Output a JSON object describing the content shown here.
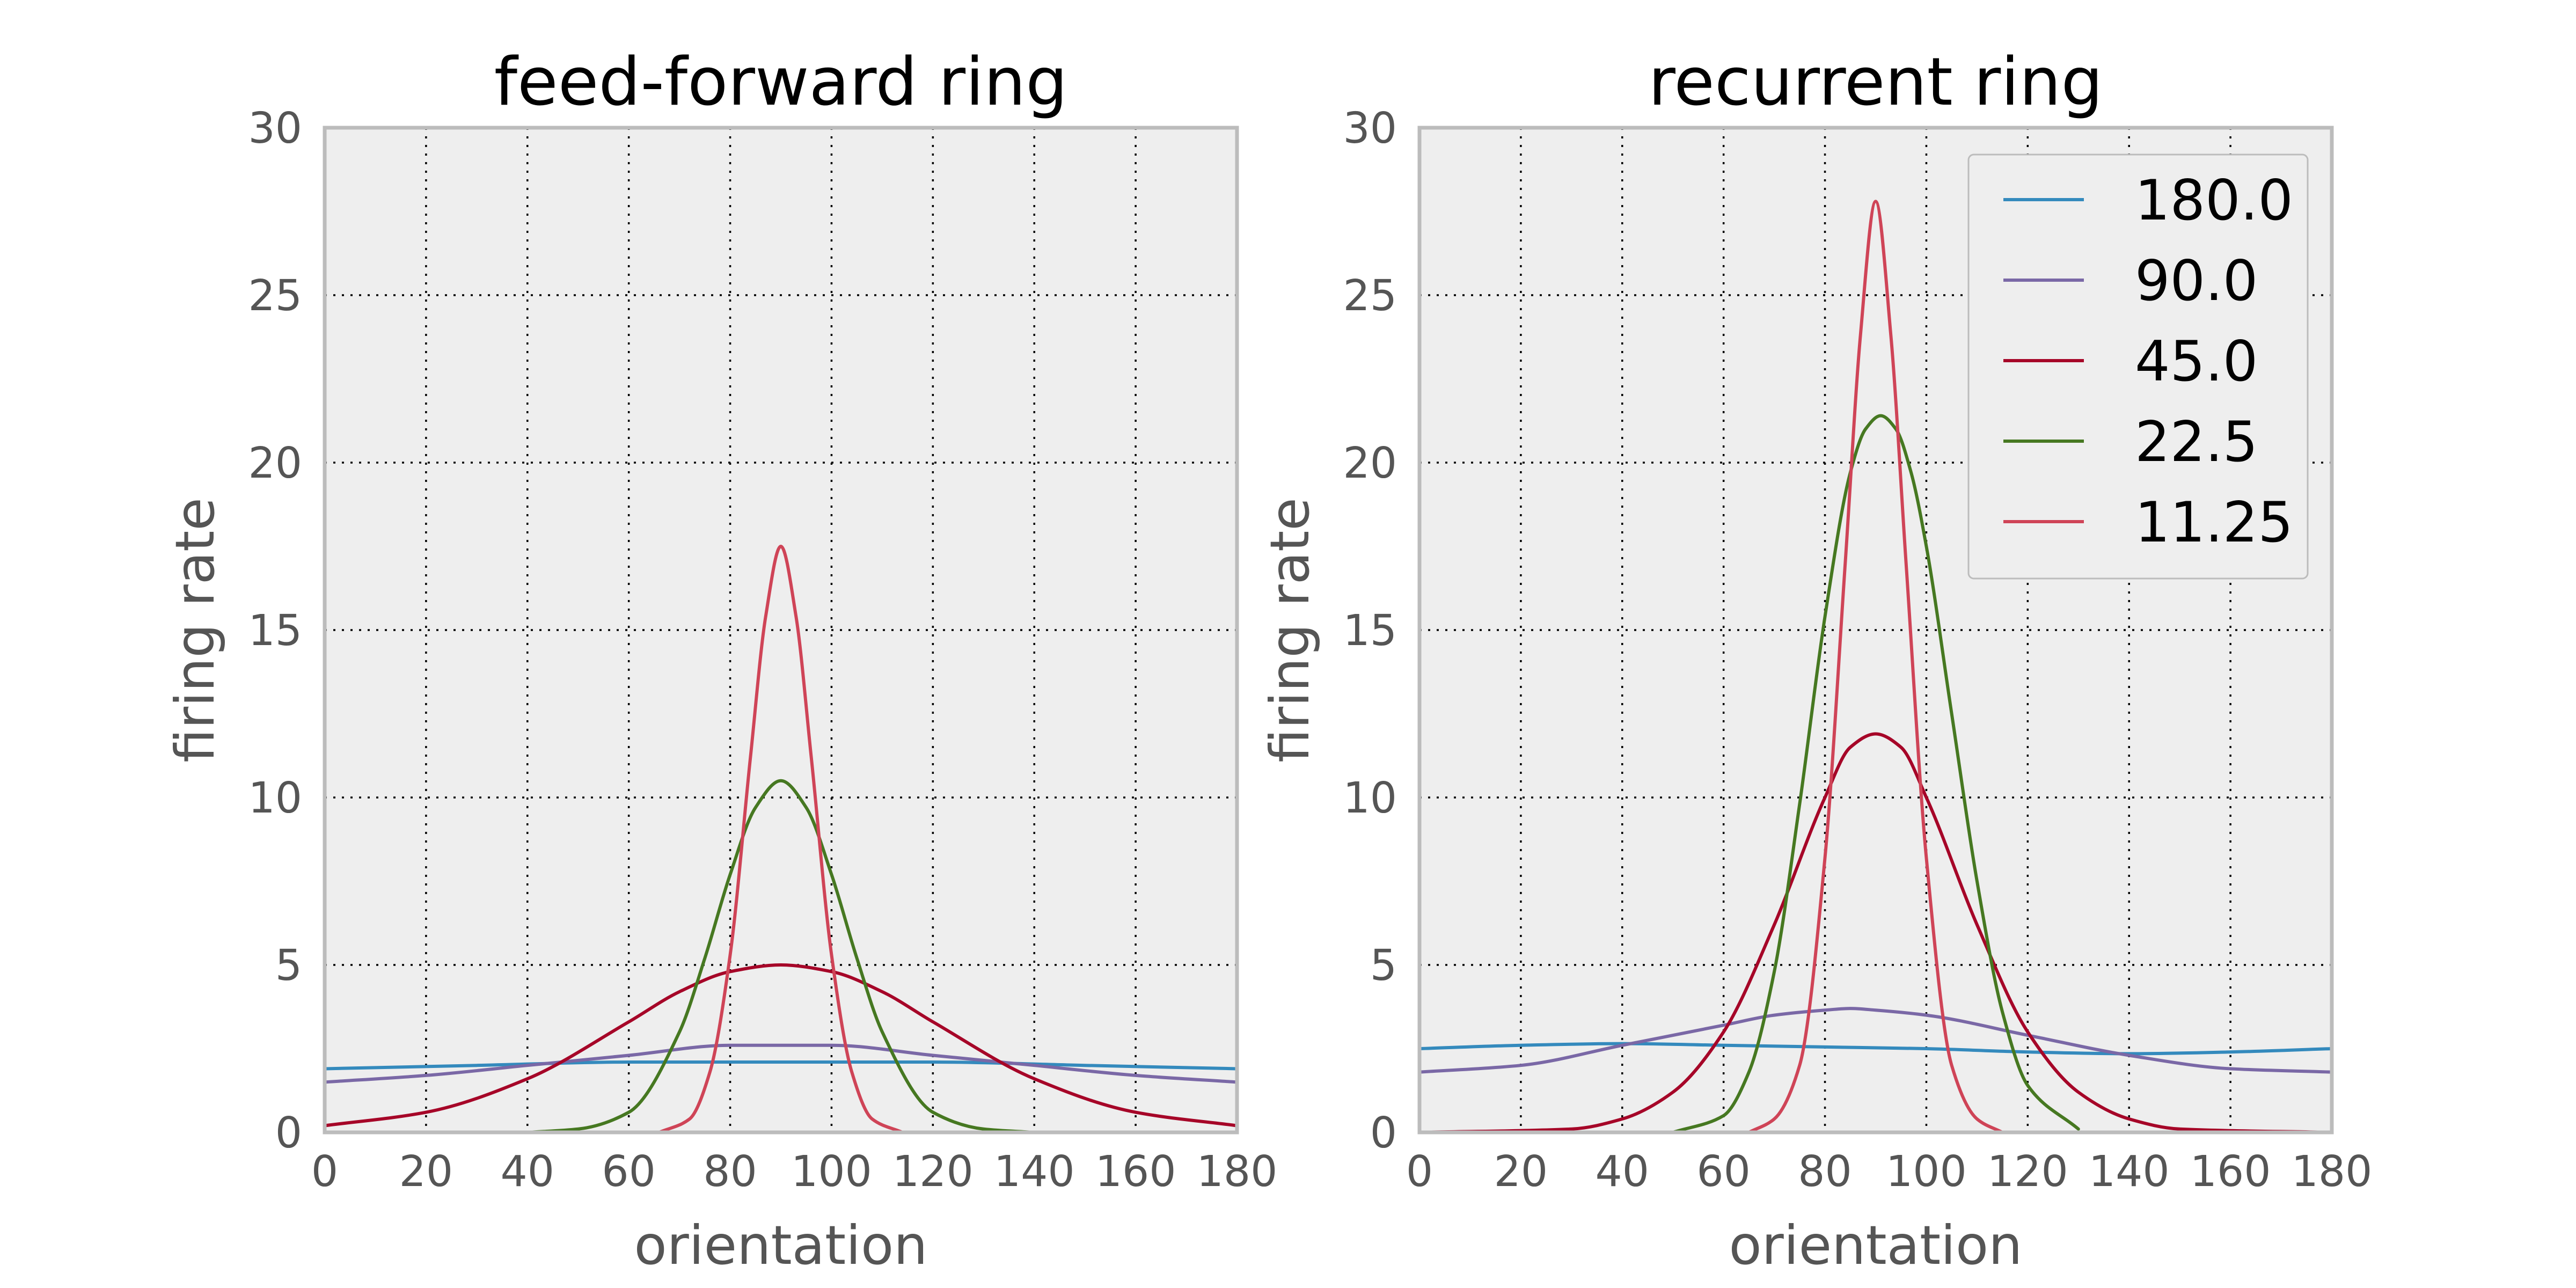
{
  "chart_data": [
    {
      "type": "line",
      "title": "feed-forward ring",
      "xlabel": "orientation",
      "ylabel": "firing rate",
      "xlim": [
        0,
        180
      ],
      "ylim": [
        0,
        30
      ],
      "xticks": [
        0,
        20,
        40,
        60,
        80,
        100,
        120,
        140,
        160,
        180
      ],
      "yticks": [
        0,
        5,
        10,
        15,
        20,
        25,
        30
      ],
      "grid": true,
      "legend": null,
      "series": [
        {
          "label": "180.0",
          "color": "#348ABD",
          "x": [
            0,
            30,
            60,
            90,
            120,
            150,
            180
          ],
          "y": [
            1.9,
            2.0,
            2.1,
            2.1,
            2.1,
            2.0,
            1.9
          ]
        },
        {
          "label": "90.0",
          "color": "#7A68A6",
          "x": [
            0,
            20,
            40,
            60,
            80,
            90,
            100,
            120,
            140,
            160,
            180
          ],
          "y": [
            1.5,
            1.7,
            2.0,
            2.3,
            2.6,
            2.6,
            2.6,
            2.3,
            2.0,
            1.7,
            1.5
          ]
        },
        {
          "label": "45.0",
          "color": "#A60628",
          "x": [
            0,
            20,
            40,
            60,
            70,
            80,
            90,
            100,
            110,
            120,
            140,
            160,
            180
          ],
          "y": [
            0.2,
            0.6,
            1.6,
            3.3,
            4.2,
            4.8,
            5.0,
            4.8,
            4.2,
            3.3,
            1.6,
            0.6,
            0.2
          ]
        },
        {
          "label": "22.5",
          "color": "#467821",
          "x": [
            40,
            50,
            60,
            70,
            75,
            80,
            85,
            90,
            95,
            100,
            105,
            110,
            120,
            130,
            140
          ],
          "y": [
            0.0,
            0.1,
            0.6,
            3.0,
            5.2,
            7.7,
            9.7,
            10.5,
            9.7,
            7.7,
            5.2,
            3.0,
            0.6,
            0.1,
            0.0
          ]
        },
        {
          "label": "11.25",
          "color": "#CF4457",
          "x": [
            66,
            72,
            76,
            80,
            84,
            87,
            90,
            93,
            96,
            100,
            104,
            108,
            114
          ],
          "y": [
            0.0,
            0.4,
            1.8,
            5.3,
            11.2,
            15.4,
            17.5,
            15.4,
            11.2,
            5.3,
            1.8,
            0.4,
            0.0
          ]
        }
      ]
    },
    {
      "type": "line",
      "title": "recurrent ring",
      "xlabel": "orientation",
      "ylabel": "firing rate",
      "xlim": [
        0,
        180
      ],
      "ylim": [
        0,
        30
      ],
      "xticks": [
        0,
        20,
        40,
        60,
        80,
        100,
        120,
        140,
        160,
        180
      ],
      "yticks": [
        0,
        5,
        10,
        15,
        20,
        25,
        30
      ],
      "grid": true,
      "legend": "top-right",
      "series": [
        {
          "label": "180.0",
          "color": "#348ABD",
          "x": [
            0,
            20,
            40,
            60,
            80,
            100,
            120,
            140,
            160,
            180
          ],
          "y": [
            2.5,
            2.6,
            2.65,
            2.6,
            2.55,
            2.5,
            2.4,
            2.35,
            2.4,
            2.5
          ]
        },
        {
          "label": "90.0",
          "color": "#7A68A6",
          "x": [
            0,
            20,
            40,
            60,
            70,
            80,
            85,
            90,
            100,
            120,
            140,
            160,
            180
          ],
          "y": [
            1.8,
            2.0,
            2.6,
            3.2,
            3.5,
            3.65,
            3.7,
            3.65,
            3.5,
            2.9,
            2.3,
            1.9,
            1.8
          ]
        },
        {
          "label": "45.0",
          "color": "#A60628",
          "x": [
            0,
            30,
            40,
            50,
            60,
            70,
            80,
            85,
            90,
            95,
            100,
            110,
            120,
            130,
            140,
            150,
            180
          ],
          "y": [
            0.0,
            0.1,
            0.4,
            1.2,
            3.0,
            6.2,
            10.0,
            11.5,
            11.9,
            11.5,
            10.0,
            6.2,
            3.0,
            1.2,
            0.4,
            0.1,
            0.0
          ]
        },
        {
          "label": "22.5",
          "color": "#467821",
          "x": [
            50,
            60,
            65,
            70,
            75,
            80,
            85,
            88,
            91,
            94,
            97,
            100,
            105,
            110,
            115,
            120,
            130
          ],
          "y": [
            0.0,
            0.5,
            1.8,
            4.8,
            9.8,
            15.4,
            19.7,
            21.0,
            21.4,
            21.0,
            19.7,
            17.5,
            12.5,
            7.5,
            3.6,
            1.4,
            0.1
          ]
        },
        {
          "label": "11.25",
          "color": "#CF4457",
          "x": [
            65,
            70,
            75,
            80,
            84,
            87,
            90,
            93,
            96,
            100,
            105,
            110,
            115
          ],
          "y": [
            0.0,
            0.4,
            2.0,
            8.2,
            17.0,
            23.8,
            27.8,
            23.8,
            17.0,
            8.2,
            2.0,
            0.4,
            0.0
          ]
        }
      ]
    }
  ]
}
